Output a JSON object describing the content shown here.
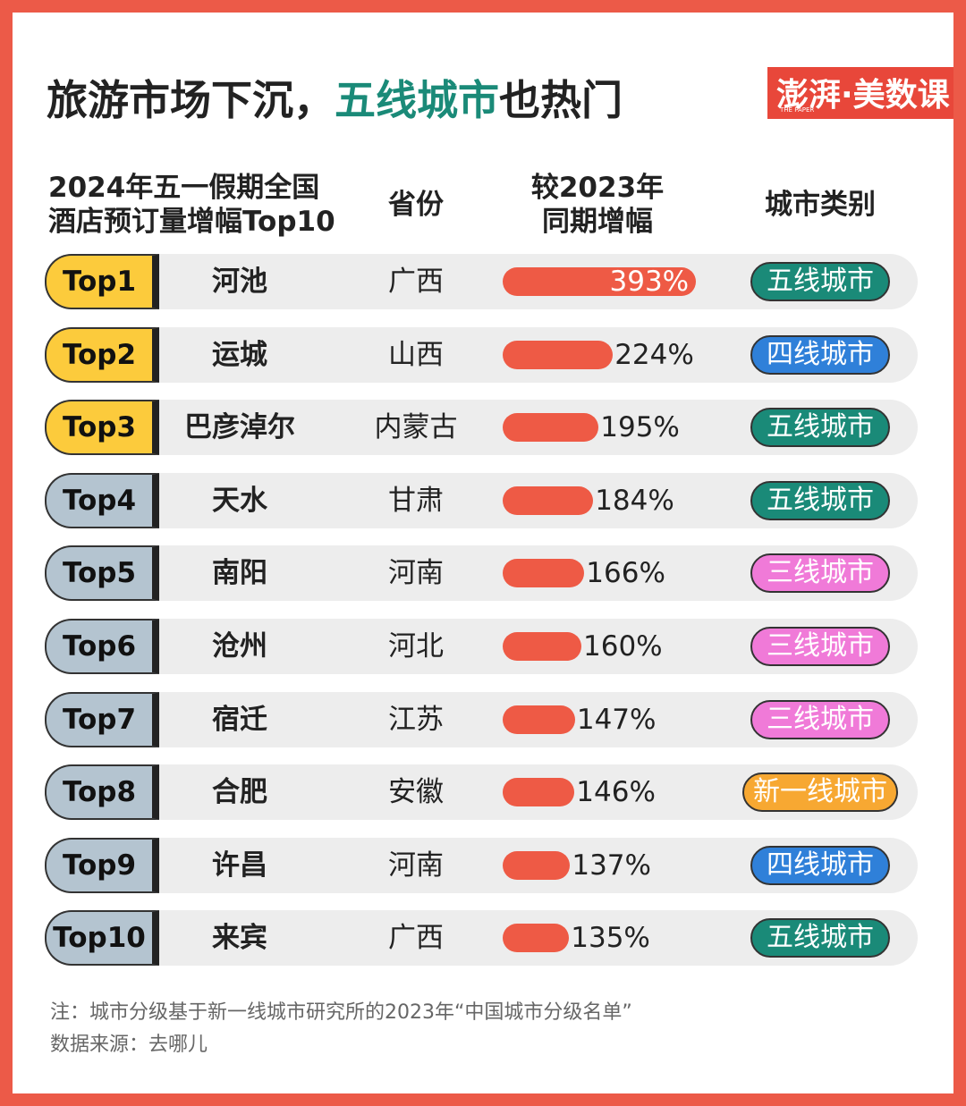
{
  "title": {
    "before": "旅游市场下沉，",
    "highlight": "五线城市",
    "after": "也热门"
  },
  "logo": {
    "name": "澎湃·美数课",
    "sub": "THE PAPER"
  },
  "headers": {
    "rank_line1": "2024年五一假期全国",
    "rank_line2": "酒店预订量增幅Top10",
    "province": "省份",
    "growth_line1": "较2023年",
    "growth_line2": "同期增幅",
    "category": "城市类别"
  },
  "colors": {
    "top3": "#fccb3c",
    "rest": "#b4c4d0",
    "bar": "#ee5a45",
    "五线城市": "#1a8a78",
    "四线城市": "#2f80d9",
    "三线城市": "#f07ad8",
    "新一线城市": "#f7a832"
  },
  "rows": [
    {
      "rank": "Top1",
      "city": "河池",
      "province": "广西",
      "growth": 393,
      "growth_label": "393%",
      "category": "五线城市"
    },
    {
      "rank": "Top2",
      "city": "运城",
      "province": "山西",
      "growth": 224,
      "growth_label": "224%",
      "category": "四线城市"
    },
    {
      "rank": "Top3",
      "city": "巴彦淖尔",
      "province": "内蒙古",
      "growth": 195,
      "growth_label": "195%",
      "category": "五线城市"
    },
    {
      "rank": "Top4",
      "city": "天水",
      "province": "甘肃",
      "growth": 184,
      "growth_label": "184%",
      "category": "五线城市"
    },
    {
      "rank": "Top5",
      "city": "南阳",
      "province": "河南",
      "growth": 166,
      "growth_label": "166%",
      "category": "三线城市"
    },
    {
      "rank": "Top6",
      "city": "沧州",
      "province": "河北",
      "growth": 160,
      "growth_label": "160%",
      "category": "三线城市"
    },
    {
      "rank": "Top7",
      "city": "宿迁",
      "province": "江苏",
      "growth": 147,
      "growth_label": "147%",
      "category": "三线城市"
    },
    {
      "rank": "Top8",
      "city": "合肥",
      "province": "安徽",
      "growth": 146,
      "growth_label": "146%",
      "category": "新一线城市"
    },
    {
      "rank": "Top9",
      "city": "许昌",
      "province": "河南",
      "growth": 137,
      "growth_label": "137%",
      "category": "四线城市"
    },
    {
      "rank": "Top10",
      "city": "来宾",
      "province": "广西",
      "growth": 135,
      "growth_label": "135%",
      "category": "五线城市"
    }
  ],
  "notes": [
    "注：城市分级基于新一线城市研究所的2023年“中国城市分级名单”",
    "数据来源：去哪儿"
  ]
}
